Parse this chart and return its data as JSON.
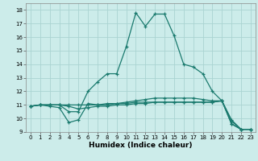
{
  "xlabel": "Humidex (Indice chaleur)",
  "bg_color": "#ccecea",
  "grid_color": "#aad4d2",
  "line_color": "#1a7a6e",
  "xlim": [
    -0.5,
    23.5
  ],
  "ylim": [
    9,
    18.5
  ],
  "xticks": [
    0,
    1,
    2,
    3,
    4,
    5,
    6,
    7,
    8,
    9,
    10,
    11,
    12,
    13,
    14,
    15,
    16,
    17,
    18,
    19,
    20,
    21,
    22,
    23
  ],
  "yticks": [
    9,
    10,
    11,
    12,
    13,
    14,
    15,
    16,
    17,
    18
  ],
  "lines": [
    {
      "x": [
        0,
        1,
        2,
        3,
        4,
        5,
        6,
        7,
        8,
        9,
        10,
        11,
        12,
        13,
        14,
        15,
        16,
        17,
        18,
        19,
        20,
        21,
        22,
        23
      ],
      "y": [
        10.9,
        11.0,
        11.0,
        11.0,
        10.5,
        10.5,
        12.0,
        12.7,
        13.3,
        13.3,
        15.3,
        17.8,
        16.8,
        17.7,
        17.7,
        16.1,
        14.0,
        13.8,
        13.3,
        12.0,
        11.3,
        9.6,
        9.2,
        9.2
      ]
    },
    {
      "x": [
        0,
        1,
        2,
        3,
        4,
        5,
        6,
        7,
        8,
        9,
        10,
        11,
        12,
        13,
        14,
        15,
        16,
        17,
        18,
        19,
        20,
        21,
        22,
        23
      ],
      "y": [
        10.9,
        11.0,
        10.9,
        10.8,
        9.7,
        9.9,
        11.1,
        11.0,
        11.0,
        11.1,
        11.2,
        11.3,
        11.4,
        11.5,
        11.5,
        11.5,
        11.5,
        11.5,
        11.4,
        11.3,
        11.3,
        9.6,
        9.2,
        9.2
      ]
    },
    {
      "x": [
        0,
        1,
        2,
        3,
        4,
        5,
        6,
        7,
        8,
        9,
        10,
        11,
        12,
        13,
        14,
        15,
        16,
        17,
        18,
        19,
        20,
        21,
        22,
        23
      ],
      "y": [
        10.9,
        11.0,
        11.0,
        11.0,
        10.9,
        10.7,
        10.8,
        10.9,
        10.9,
        11.0,
        11.0,
        11.1,
        11.1,
        11.2,
        11.2,
        11.2,
        11.2,
        11.2,
        11.2,
        11.2,
        11.3,
        9.8,
        9.2,
        9.2
      ]
    },
    {
      "x": [
        0,
        1,
        2,
        3,
        4,
        5,
        6,
        7,
        8,
        9,
        10,
        11,
        12,
        13,
        14,
        15,
        16,
        17,
        18,
        19,
        20,
        21,
        22,
        23
      ],
      "y": [
        10.9,
        11.0,
        11.0,
        11.0,
        11.0,
        11.0,
        11.0,
        11.0,
        11.1,
        11.1,
        11.1,
        11.2,
        11.2,
        11.2,
        11.2,
        11.2,
        11.2,
        11.2,
        11.2,
        11.2,
        11.3,
        9.9,
        9.2,
        9.2
      ]
    }
  ]
}
